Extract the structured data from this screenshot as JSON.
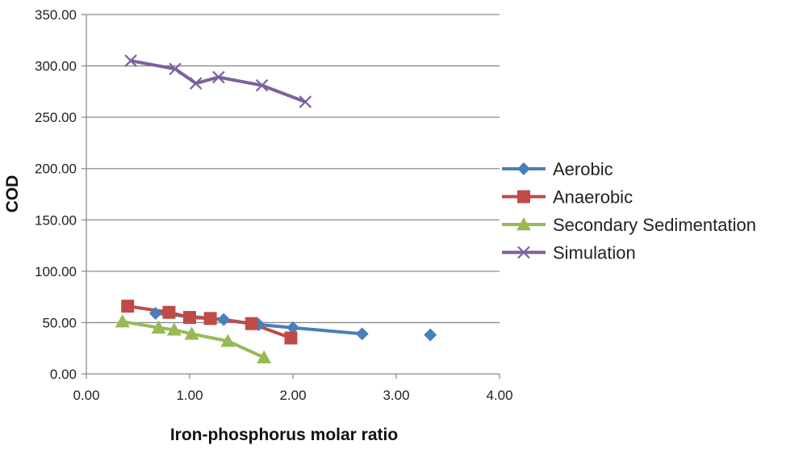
{
  "chart_data": {
    "type": "line",
    "title": "",
    "xlabel": "Iron-phosphorus molar ratio",
    "ylabel": "COD",
    "xlim": [
      0,
      4
    ],
    "ylim": [
      0,
      350
    ],
    "x_ticks": [
      0,
      1,
      2,
      3,
      4
    ],
    "y_ticks": [
      0,
      50,
      100,
      150,
      200,
      250,
      300,
      350
    ],
    "x_tick_labels": [
      "0.00",
      "1.00",
      "2.00",
      "3.00",
      "4.00"
    ],
    "y_tick_labels": [
      "0.00",
      "50.00",
      "100.00",
      "150.00",
      "200.00",
      "250.00",
      "300.00",
      "350.00"
    ],
    "grid": "horizontal",
    "legend_position": "right",
    "series": [
      {
        "name": "Aerobic",
        "color": "#4a7ebb",
        "marker": "diamond",
        "points": [
          [
            0.67,
            59
          ],
          [
            1.33,
            53
          ],
          [
            1.67,
            48
          ],
          [
            2.0,
            45
          ],
          [
            2.67,
            39
          ]
        ],
        "unconnected_points": [
          [
            3.33,
            38
          ]
        ]
      },
      {
        "name": "Anaerobic",
        "color": "#be4b48",
        "marker": "square",
        "points": [
          [
            0.4,
            66
          ],
          [
            0.8,
            60
          ],
          [
            1.0,
            55
          ],
          [
            1.2,
            54
          ],
          [
            1.6,
            49
          ],
          [
            1.98,
            35
          ]
        ],
        "unconnected_points": []
      },
      {
        "name": "Secondary Sedimentation",
        "color": "#98b954",
        "marker": "triangle",
        "points": [
          [
            0.35,
            51
          ],
          [
            0.7,
            45
          ],
          [
            0.85,
            43
          ],
          [
            1.02,
            39
          ],
          [
            1.37,
            32
          ],
          [
            1.72,
            16
          ]
        ],
        "unconnected_points": []
      },
      {
        "name": "Simulation",
        "color": "#7d60a0",
        "marker": "x",
        "points": [
          [
            0.43,
            305
          ],
          [
            0.86,
            297
          ],
          [
            1.06,
            283
          ],
          [
            1.28,
            289
          ],
          [
            1.7,
            281
          ],
          [
            2.12,
            265
          ]
        ],
        "unconnected_points": []
      }
    ]
  }
}
